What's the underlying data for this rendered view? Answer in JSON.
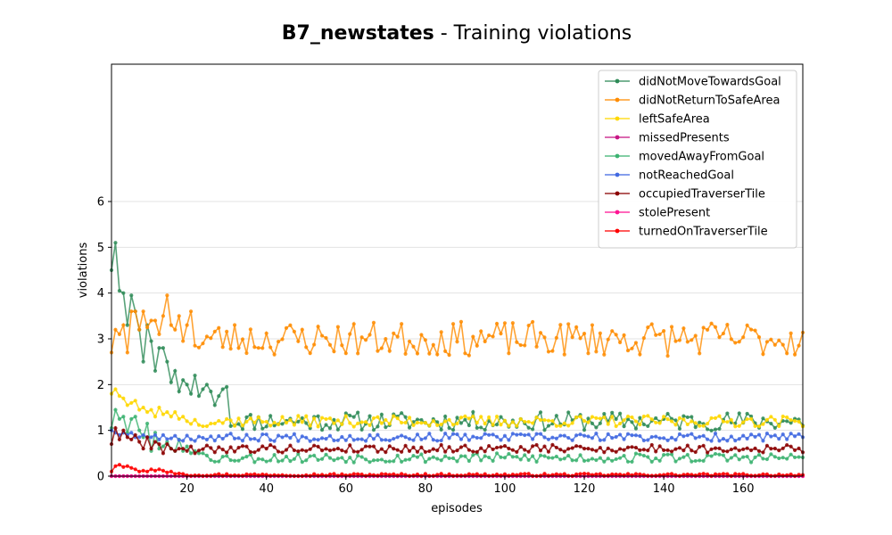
{
  "chart_data": {
    "type": "line",
    "title_bold": "B7_newstates",
    "title_rest": " - Training violations",
    "xlabel": "episodes",
    "ylabel": "violations",
    "xlim": [
      1,
      175
    ],
    "ylim": [
      0,
      9
    ],
    "xticks": [
      20,
      40,
      60,
      80,
      100,
      120,
      140,
      160
    ],
    "yticks": [
      0,
      1,
      2,
      3,
      4,
      5,
      6
    ],
    "grid": "horizontal",
    "legend_position": "top-right",
    "series": [
      {
        "name": "didNotMoveTowardsGoal",
        "color": "#2e8b57",
        "start": [
          4.5,
          5.1,
          4.05,
          4.0,
          3.3,
          3.95,
          3.6,
          3.2,
          2.5,
          3.3,
          2.95,
          2.3,
          2.8,
          2.8,
          2.5,
          2.05,
          2.3,
          1.85,
          2.1,
          2.0,
          1.8,
          2.2,
          1.75,
          1.9,
          2.0,
          1.85,
          1.55,
          1.75,
          1.9,
          1.95
        ],
        "base": 1.2,
        "noise": 0.12,
        "seed": 11
      },
      {
        "name": "didNotReturnToSafeArea",
        "color": "#ff8c00",
        "start": [
          2.7,
          3.2,
          3.1,
          3.3,
          2.7,
          3.6,
          3.6,
          3.2,
          3.6,
          3.25,
          3.4,
          3.4,
          3.1,
          3.5,
          3.95,
          3.3,
          3.2,
          3.5,
          2.95,
          3.3,
          3.6,
          2.85
        ],
        "base": 3.0,
        "noise": 0.22,
        "seed": 23
      },
      {
        "name": "leftSafeArea",
        "color": "#ffd700",
        "start": [
          1.8,
          1.9,
          1.75,
          1.7,
          1.55,
          1.6,
          1.65,
          1.45,
          1.5,
          1.4,
          1.45,
          1.3,
          1.5,
          1.35,
          1.4,
          1.3,
          1.4,
          1.25,
          1.3,
          1.2
        ],
        "base": 1.2,
        "noise": 0.07,
        "seed": 37
      },
      {
        "name": "missedPresents",
        "color": "#c71585",
        "start": [
          0.0,
          0.0
        ],
        "base": 0.0,
        "noise": 0.0,
        "seed": 41
      },
      {
        "name": "movedAwayFromGoal",
        "color": "#3cb371",
        "start": [
          1.05,
          1.45,
          1.25,
          1.3,
          0.95,
          1.25,
          1.3,
          1.0,
          0.85,
          1.15,
          0.55,
          0.95,
          0.6,
          0.65,
          0.75,
          0.6,
          0.55,
          0.8,
          0.55,
          0.65,
          0.5,
          0.55,
          0.5,
          0.5,
          0.45
        ],
        "base": 0.4,
        "noise": 0.06,
        "seed": 53
      },
      {
        "name": "notReachedGoal",
        "color": "#4169e1",
        "start": [
          1.0,
          0.95,
          0.9,
          0.95,
          0.9,
          0.95,
          0.85,
          0.85,
          0.9,
          0.85,
          0.85,
          0.9,
          0.8,
          0.9
        ],
        "base": 0.85,
        "noise": 0.05,
        "seed": 67
      },
      {
        "name": "occupiedTraverserTile",
        "color": "#8b0000",
        "start": [
          0.7,
          1.05,
          0.8,
          1.0,
          0.85,
          0.8,
          0.9,
          0.75,
          0.6,
          0.85,
          0.6,
          0.75,
          0.7,
          0.5,
          0.7,
          0.6,
          0.55,
          0.6,
          0.6,
          0.55,
          0.65,
          0.5
        ],
        "base": 0.6,
        "noise": 0.05,
        "seed": 79
      },
      {
        "name": "stolePresent",
        "color": "#ff1493",
        "start": [
          0.0,
          0.0
        ],
        "base": 0.0,
        "noise": 0.0,
        "seed": 83
      },
      {
        "name": "turnedOnTraverserTile",
        "color": "#ff0000",
        "start": [
          0.1,
          0.22,
          0.25,
          0.2,
          0.22,
          0.18,
          0.15,
          0.1,
          0.12,
          0.1,
          0.15,
          0.12,
          0.15,
          0.12,
          0.08,
          0.1,
          0.05,
          0.06,
          0.05
        ],
        "base": 0.03,
        "noise": 0.015,
        "seed": 97
      }
    ]
  }
}
